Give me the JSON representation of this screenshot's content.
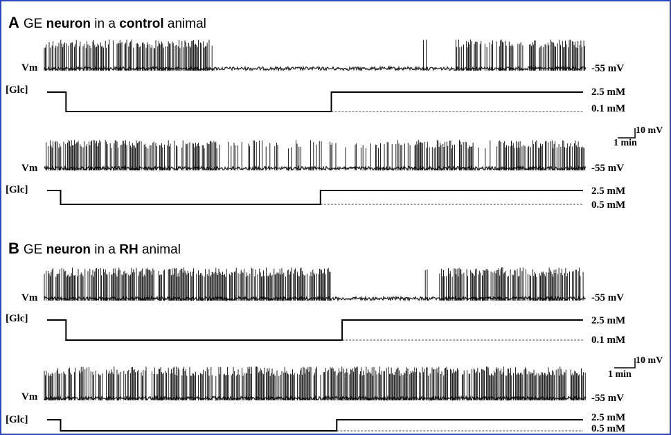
{
  "figure": {
    "panel_a": {
      "letter": "A",
      "title_parts": [
        "GE ",
        "neuron",
        " in a ",
        "control",
        " animal"
      ],
      "traces": [
        {
          "vm_label": "Vm",
          "glc_label": "[Glc]",
          "vm_level": "-55 mV",
          "glc_high": "2.5 mM",
          "glc_low": "0.1 mM",
          "firing_pattern": [
            {
              "from": 0.0,
              "to": 0.31,
              "density": 0.95
            },
            {
              "from": 0.31,
              "to": 0.7,
              "density": 0.0
            },
            {
              "from": 0.7,
              "to": 0.72,
              "density": 0.3
            },
            {
              "from": 0.72,
              "to": 0.76,
              "density": 0.0
            },
            {
              "from": 0.76,
              "to": 1.0,
              "density": 0.85
            }
          ],
          "glc_steps": {
            "drop_at": 0.04,
            "rise_at": 0.53
          }
        },
        {
          "vm_label": "Vm",
          "glc_label": "[Glc]",
          "vm_level": "-55 mV",
          "glc_high": "2.5 mM",
          "glc_low": "0.5 mM",
          "firing_pattern": [
            {
              "from": 0.0,
              "to": 0.32,
              "density": 0.95
            },
            {
              "from": 0.32,
              "to": 0.67,
              "density": 0.35
            },
            {
              "from": 0.67,
              "to": 0.8,
              "density": 0.75
            },
            {
              "from": 0.8,
              "to": 0.85,
              "density": 0.3
            },
            {
              "from": 0.85,
              "to": 1.0,
              "density": 0.9
            }
          ],
          "glc_steps": {
            "drop_at": 0.03,
            "rise_at": 0.51
          }
        }
      ],
      "scale_bar": {
        "vertical": "10 mV",
        "horizontal": "1 min"
      }
    },
    "panel_b": {
      "letter": "B",
      "title_parts": [
        "GE ",
        "neuron",
        " in a ",
        "RH",
        " animal"
      ],
      "traces": [
        {
          "vm_label": "Vm",
          "glc_label": "[Glc]",
          "vm_level": "-55 mV",
          "glc_high": "2.5 mM",
          "glc_low": "0.1 mM",
          "firing_pattern": [
            {
              "from": 0.0,
              "to": 0.53,
              "density": 1.0
            },
            {
              "from": 0.53,
              "to": 0.7,
              "density": 0.0
            },
            {
              "from": 0.7,
              "to": 0.71,
              "density": 0.6
            },
            {
              "from": 0.71,
              "to": 0.73,
              "density": 0.0
            },
            {
              "from": 0.73,
              "to": 1.0,
              "density": 1.0
            }
          ],
          "glc_steps": {
            "drop_at": 0.04,
            "rise_at": 0.55
          }
        },
        {
          "vm_label": "Vm",
          "glc_label": "[Glc]",
          "vm_level": "-55 mV",
          "glc_high": "2.5 mM",
          "glc_low": "0.5 mM",
          "firing_pattern": [
            {
              "from": 0.0,
              "to": 1.0,
              "density": 1.0
            }
          ],
          "glc_steps": {
            "drop_at": 0.03,
            "rise_at": 0.54
          }
        }
      ],
      "scale_bar": {
        "vertical": "10 mV",
        "horizontal": "1 min"
      }
    }
  }
}
